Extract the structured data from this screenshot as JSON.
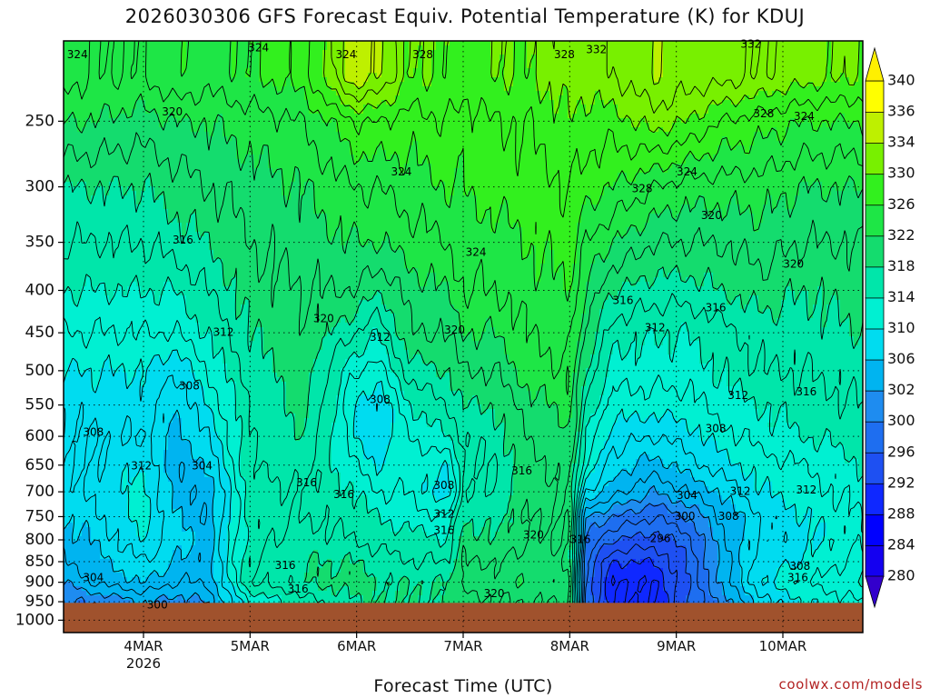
{
  "title": "2026030306 GFS Forecast Equiv. Potential Temperature (K) for KDUJ",
  "credit": "coolwx.com/models",
  "chart_data": {
    "type": "heatmap",
    "title": "2026030306 GFS Forecast Equiv. Potential Temperature (K) for KDUJ",
    "xlabel": "Forecast Time (UTC)",
    "ylabel": "",
    "y_axis": {
      "scale": "log-pressure",
      "ticks": [
        250,
        300,
        350,
        400,
        450,
        500,
        550,
        600,
        650,
        700,
        750,
        800,
        850,
        900,
        950,
        1000
      ],
      "range_hPa": [
        200,
        1035
      ],
      "surface_hPa": 953
    },
    "x_axis": {
      "ticks": [
        {
          "label": "4MAR",
          "sublabel": "2026",
          "day": 4
        },
        {
          "label": "5MAR",
          "sublabel": "",
          "day": 5
        },
        {
          "label": "6MAR",
          "sublabel": "",
          "day": 6
        },
        {
          "label": "7MAR",
          "sublabel": "",
          "day": 7
        },
        {
          "label": "8MAR",
          "sublabel": "",
          "day": 8
        },
        {
          "label": "9MAR",
          "sublabel": "",
          "day": 9
        },
        {
          "label": "10MAR",
          "sublabel": "",
          "day": 10
        }
      ],
      "range_days": [
        3.25,
        10.75
      ]
    },
    "grid": true,
    "colorbar": {
      "unit": "K",
      "levels": [
        280,
        284,
        288,
        292,
        296,
        300,
        302,
        306,
        310,
        314,
        318,
        322,
        326,
        330,
        334,
        336,
        340
      ],
      "colors": [
        "#3300cc",
        "#1400f0",
        "#0000ff",
        "#0f28ff",
        "#1e50f2",
        "#1e6ef0",
        "#1e8cf0",
        "#00b4f0",
        "#00dcf0",
        "#00f0d2",
        "#00e6aa",
        "#14dc6e",
        "#1ee646",
        "#32f01e",
        "#78f000",
        "#bef000",
        "#ffff00",
        "#fff000"
      ]
    },
    "contour_interval_K": 2,
    "field": {
      "times_day": [
        3.25,
        3.5,
        4.0,
        4.3,
        4.6,
        5.0,
        5.5,
        6.0,
        6.2,
        6.5,
        6.85,
        7.0,
        7.3,
        7.6,
        8.0,
        8.15,
        8.4,
        8.8,
        9.1,
        9.4,
        9.8,
        10.2,
        10.75
      ],
      "levels_hPa": [
        220,
        250,
        300,
        350,
        400,
        450,
        500,
        550,
        600,
        650,
        700,
        750,
        800,
        850,
        900,
        950
      ],
      "theta_e_K": [
        [
          325,
          322,
          318,
          316,
          314,
          312,
          310,
          308,
          308,
          308,
          308,
          306,
          305,
          304,
          302,
          300
        ],
        [
          324,
          322,
          318,
          316,
          314,
          312,
          310,
          309,
          308,
          308,
          308,
          307,
          306,
          305,
          304,
          300
        ],
        [
          324,
          321,
          318,
          316,
          314,
          312,
          310,
          309,
          308,
          310,
          311,
          311,
          310,
          308,
          306,
          302
        ],
        [
          326,
          322,
          319,
          317,
          314,
          312,
          308,
          306,
          305,
          304,
          305,
          306,
          307,
          306,
          304,
          301
        ],
        [
          325,
          322,
          320,
          318,
          316,
          314,
          312,
          310,
          308,
          306,
          304,
          304,
          305,
          305,
          304,
          302
        ],
        [
          326,
          323,
          321,
          320,
          319,
          318,
          317,
          316,
          316,
          316,
          315,
          315,
          315,
          316,
          316,
          312
        ],
        [
          327,
          324,
          322,
          321,
          320,
          320,
          319,
          319,
          318,
          317,
          316,
          316,
          317,
          318,
          318,
          315
        ],
        [
          336,
          328,
          324,
          322,
          320,
          316,
          312,
          310,
          310,
          312,
          314,
          315,
          316,
          318,
          319,
          318
        ],
        [
          334,
          328,
          324,
          322,
          318,
          314,
          311,
          308,
          308,
          310,
          312,
          314,
          315,
          317,
          318,
          318
        ],
        [
          330,
          327,
          325,
          323,
          321,
          320,
          317,
          314,
          312,
          311,
          312,
          313,
          315,
          316,
          318,
          318
        ],
        [
          330,
          328,
          326,
          324,
          322,
          320,
          318,
          316,
          314,
          310,
          308,
          312,
          314,
          316,
          318,
          318
        ],
        [
          329,
          327,
          326,
          325,
          324,
          322,
          320,
          318,
          316,
          316,
          316,
          318,
          319,
          320,
          321,
          319
        ],
        [
          330,
          328,
          327,
          325,
          324,
          322,
          320,
          318,
          317,
          316,
          316,
          317,
          318,
          320,
          321,
          320
        ],
        [
          330,
          328,
          327,
          326,
          325,
          324,
          323,
          321,
          320,
          319,
          319,
          320,
          320,
          321,
          322,
          320
        ],
        [
          331,
          330,
          328,
          327,
          326,
          325,
          324,
          323,
          322,
          321,
          320,
          320,
          320,
          320,
          321,
          320
        ],
        [
          331,
          329,
          327,
          324,
          322,
          320,
          318,
          316,
          314,
          312,
          308,
          302,
          300,
          298,
          298,
          298
        ],
        [
          332,
          329,
          326,
          322,
          318,
          315,
          313,
          311,
          309,
          307,
          305,
          300,
          296,
          292,
          290,
          290
        ],
        [
          334,
          331,
          324,
          320,
          317,
          314,
          313,
          311,
          308,
          305,
          302,
          298,
          295,
          292,
          290,
          290
        ],
        [
          333,
          330,
          323,
          320,
          317,
          314,
          313,
          311,
          309,
          307,
          304,
          300,
          297,
          296,
          296,
          296
        ],
        [
          333,
          328,
          323,
          320,
          318,
          315,
          314,
          313,
          311,
          309,
          306,
          304,
          303,
          302,
          302,
          300
        ],
        [
          332,
          327,
          323,
          321,
          319,
          317,
          316,
          314,
          313,
          311,
          310,
          308,
          308,
          309,
          310,
          307
        ],
        [
          331,
          326,
          322,
          320,
          318,
          317,
          316,
          315,
          314,
          312,
          311,
          310,
          309,
          310,
          312,
          310
        ],
        [
          330,
          326,
          322,
          320,
          319,
          318,
          317,
          316,
          315,
          314,
          313,
          312,
          312,
          313,
          314,
          312
        ]
      ]
    },
    "contour_labels": [
      {
        "value": "324",
        "day": 3.38,
        "hPa": 208
      },
      {
        "value": "324",
        "day": 5.08,
        "hPa": 204
      },
      {
        "value": "324",
        "day": 5.9,
        "hPa": 208
      },
      {
        "value": "328",
        "day": 6.62,
        "hPa": 208
      },
      {
        "value": "328",
        "day": 7.95,
        "hPa": 208
      },
      {
        "value": "332",
        "day": 8.25,
        "hPa": 205
      },
      {
        "value": "332",
        "day": 9.7,
        "hPa": 202
      },
      {
        "value": "320",
        "day": 4.27,
        "hPa": 244
      },
      {
        "value": "328",
        "day": 9.82,
        "hPa": 245
      },
      {
        "value": "324",
        "day": 10.2,
        "hPa": 247
      },
      {
        "value": "324",
        "day": 6.42,
        "hPa": 288
      },
      {
        "value": "328",
        "day": 8.68,
        "hPa": 302
      },
      {
        "value": "324",
        "day": 9.1,
        "hPa": 288
      },
      {
        "value": "320",
        "day": 9.33,
        "hPa": 325
      },
      {
        "value": "316",
        "day": 4.37,
        "hPa": 348
      },
      {
        "value": "324",
        "day": 7.12,
        "hPa": 360
      },
      {
        "value": "320",
        "day": 10.1,
        "hPa": 372
      },
      {
        "value": "316",
        "day": 8.5,
        "hPa": 412
      },
      {
        "value": "316",
        "day": 9.37,
        "hPa": 420
      },
      {
        "value": "320",
        "day": 5.69,
        "hPa": 433
      },
      {
        "value": "312",
        "day": 4.75,
        "hPa": 450
      },
      {
        "value": "312",
        "day": 6.22,
        "hPa": 456
      },
      {
        "value": "320",
        "day": 6.92,
        "hPa": 447
      },
      {
        "value": "312",
        "day": 8.8,
        "hPa": 444
      },
      {
        "value": "308",
        "day": 4.43,
        "hPa": 522
      },
      {
        "value": "308",
        "day": 6.22,
        "hPa": 542
      },
      {
        "value": "312",
        "day": 9.58,
        "hPa": 536
      },
      {
        "value": "316",
        "day": 10.22,
        "hPa": 531
      },
      {
        "value": "308",
        "day": 3.53,
        "hPa": 594
      },
      {
        "value": "308",
        "day": 9.37,
        "hPa": 588
      },
      {
        "value": "312",
        "day": 3.98,
        "hPa": 652
      },
      {
        "value": "304",
        "day": 4.55,
        "hPa": 652
      },
      {
        "value": "316",
        "day": 5.53,
        "hPa": 683
      },
      {
        "value": "316",
        "day": 5.88,
        "hPa": 706
      },
      {
        "value": "308",
        "day": 6.82,
        "hPa": 688
      },
      {
        "value": "316",
        "day": 7.55,
        "hPa": 661
      },
      {
        "value": "304",
        "day": 9.1,
        "hPa": 708
      },
      {
        "value": "312",
        "day": 9.6,
        "hPa": 700
      },
      {
        "value": "312",
        "day": 10.22,
        "hPa": 697
      },
      {
        "value": "312",
        "day": 6.82,
        "hPa": 745
      },
      {
        "value": "300",
        "day": 9.08,
        "hPa": 750
      },
      {
        "value": "308",
        "day": 9.49,
        "hPa": 750
      },
      {
        "value": "316",
        "day": 6.82,
        "hPa": 780
      },
      {
        "value": "320",
        "day": 7.66,
        "hPa": 790
      },
      {
        "value": "316",
        "day": 8.1,
        "hPa": 800
      },
      {
        "value": "296",
        "day": 8.85,
        "hPa": 798
      },
      {
        "value": "316",
        "day": 5.33,
        "hPa": 860
      },
      {
        "value": "308",
        "day": 10.16,
        "hPa": 862
      },
      {
        "value": "304",
        "day": 3.53,
        "hPa": 890
      },
      {
        "value": "316",
        "day": 10.14,
        "hPa": 890
      },
      {
        "value": "316",
        "day": 5.45,
        "hPa": 918
      },
      {
        "value": "320",
        "day": 7.29,
        "hPa": 930
      },
      {
        "value": "300",
        "day": 4.13,
        "hPa": 960
      }
    ]
  }
}
